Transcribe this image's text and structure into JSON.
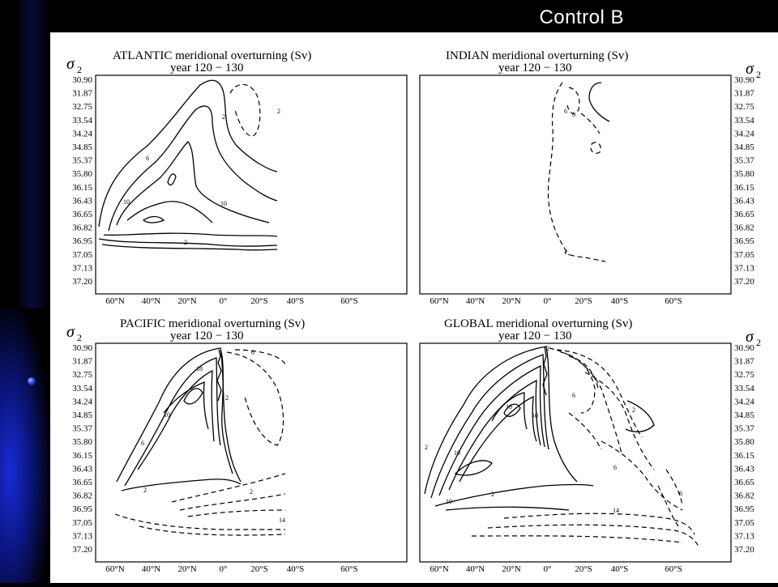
{
  "slide": {
    "title": "Control  B"
  },
  "sigma_label": "σ",
  "sigma_sub": "2",
  "sigma_levels": [
    "30.90",
    "31.87",
    "32.75",
    "33.54",
    "34.24",
    "34.85",
    "35.37",
    "35.80",
    "36.15",
    "36.43",
    "36.65",
    "36.82",
    "36.95",
    "37.05",
    "37.13",
    "37.20"
  ],
  "lat_ticks": [
    "60°N",
    "40°N",
    "20°N",
    "0°",
    "20°S",
    "40°S",
    "60°S"
  ],
  "panels": [
    {
      "id": "atlantic",
      "title": "ATLANTIC meridional overturning (Sv)",
      "subtitle": "year 120  −  130",
      "contour_labels": [
        "2",
        "6",
        "10",
        "10",
        "2",
        "2"
      ]
    },
    {
      "id": "indian",
      "title": "INDIAN   meridional overturning (Sv)",
      "subtitle": "year 120  −  130",
      "contour_labels": [
        "6",
        "6"
      ]
    },
    {
      "id": "pacific",
      "title": "PACIFIC meridional overturning (Sv)",
      "subtitle": "year 120  −  130",
      "contour_labels": [
        "18",
        "10",
        "6",
        "2",
        "6",
        "14",
        "2",
        "2"
      ]
    },
    {
      "id": "global",
      "title": "GLOBAL  meridional overturning (Sv)",
      "subtitle": "year 120  −  130",
      "contour_labels": [
        "2",
        "10",
        "18",
        "10",
        "2",
        "2",
        "6",
        "14",
        "6",
        "2",
        "6",
        "10"
      ]
    }
  ]
}
